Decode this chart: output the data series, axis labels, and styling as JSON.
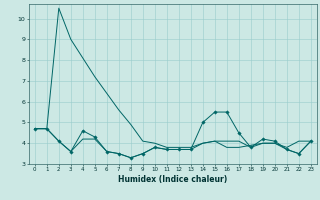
{
  "xlabel": "Humidex (Indice chaleur)",
  "bg_color": "#cce8e4",
  "grid_color": "#99cccc",
  "line_color": "#006666",
  "xlim": [
    -0.5,
    23.5
  ],
  "ylim": [
    3,
    10.7
  ],
  "yticks": [
    3,
    4,
    5,
    6,
    7,
    8,
    9,
    10
  ],
  "xticks": [
    0,
    1,
    2,
    3,
    4,
    5,
    6,
    7,
    8,
    9,
    10,
    11,
    12,
    13,
    14,
    15,
    16,
    17,
    18,
    19,
    20,
    21,
    22,
    23
  ],
  "series1_x": [
    0,
    1,
    2,
    3,
    4,
    5,
    6,
    7,
    8,
    9,
    10,
    11,
    12,
    13,
    14,
    15,
    16,
    17,
    18,
    19,
    20,
    21,
    22,
    23
  ],
  "series1_y": [
    4.7,
    4.7,
    10.5,
    9.0,
    8.1,
    7.2,
    6.4,
    5.6,
    4.9,
    4.1,
    4.0,
    3.8,
    3.8,
    3.8,
    4.0,
    4.1,
    3.8,
    3.8,
    3.9,
    4.0,
    4.0,
    3.8,
    4.1,
    4.1
  ],
  "series2_x": [
    0,
    1,
    2,
    3,
    4,
    5,
    6,
    7,
    8,
    9,
    10,
    11,
    12,
    13,
    14,
    15,
    16,
    17,
    18,
    19,
    20,
    21,
    22,
    23
  ],
  "series2_y": [
    4.7,
    4.7,
    4.1,
    3.6,
    4.6,
    4.3,
    3.6,
    3.5,
    3.3,
    3.5,
    3.8,
    3.7,
    3.7,
    3.7,
    5.0,
    5.5,
    5.5,
    4.5,
    3.8,
    4.2,
    4.1,
    3.7,
    3.5,
    4.1
  ],
  "series3_x": [
    0,
    1,
    2,
    3,
    4,
    5,
    6,
    7,
    8,
    9,
    10,
    11,
    12,
    13,
    14,
    15,
    16,
    17,
    18,
    19,
    20,
    21,
    22,
    23
  ],
  "series3_y": [
    4.7,
    4.7,
    4.1,
    3.6,
    4.2,
    4.2,
    3.6,
    3.5,
    3.3,
    3.5,
    3.8,
    3.7,
    3.7,
    3.7,
    4.0,
    4.1,
    4.1,
    4.1,
    3.8,
    4.0,
    4.0,
    3.7,
    3.5,
    4.1
  ]
}
